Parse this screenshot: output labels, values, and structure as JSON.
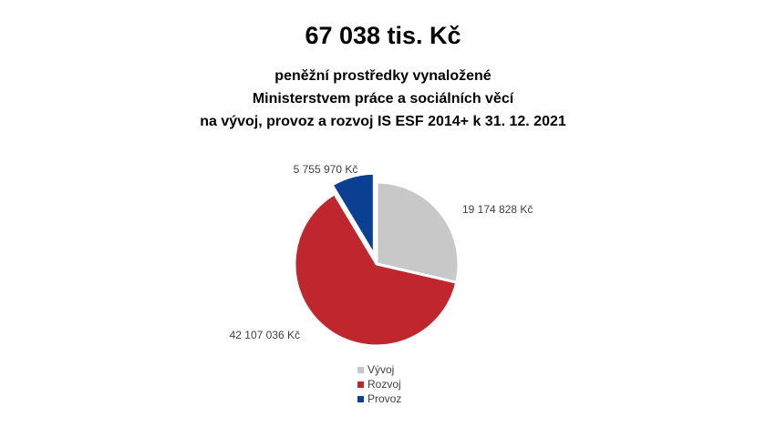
{
  "header": {
    "total": "67 038 tis. Kč",
    "subtitle_lines": [
      "peněžní prostředky vynaložené",
      "Ministerstvem práce a sociálních věcí",
      "na vývoj, provoz a rozvoj IS ESF 2014+ k 31. 12. 2021"
    ]
  },
  "chart_data": {
    "type": "pie",
    "title": "67 038 tis. Kč",
    "subtitle": "peněžní prostředky vynaložené Ministerstvem práce a sociálních věcí na vývoj, provoz a rozvoj IS ESF 2014+ k 31. 12. 2021",
    "categories": [
      "Vývoj",
      "Rozvoj",
      "Provoz"
    ],
    "values": [
      19174828,
      42107036,
      5755970
    ],
    "data_labels": [
      "19 174 828 Kč",
      "42 107 036 Kč",
      "5 755 970 Kč"
    ],
    "colors": [
      "#c8c8c8",
      "#c0262d",
      "#0b3f91"
    ],
    "exploded_slice": "Provoz",
    "start_angle": "top, clockwise",
    "legend_position": "bottom"
  }
}
